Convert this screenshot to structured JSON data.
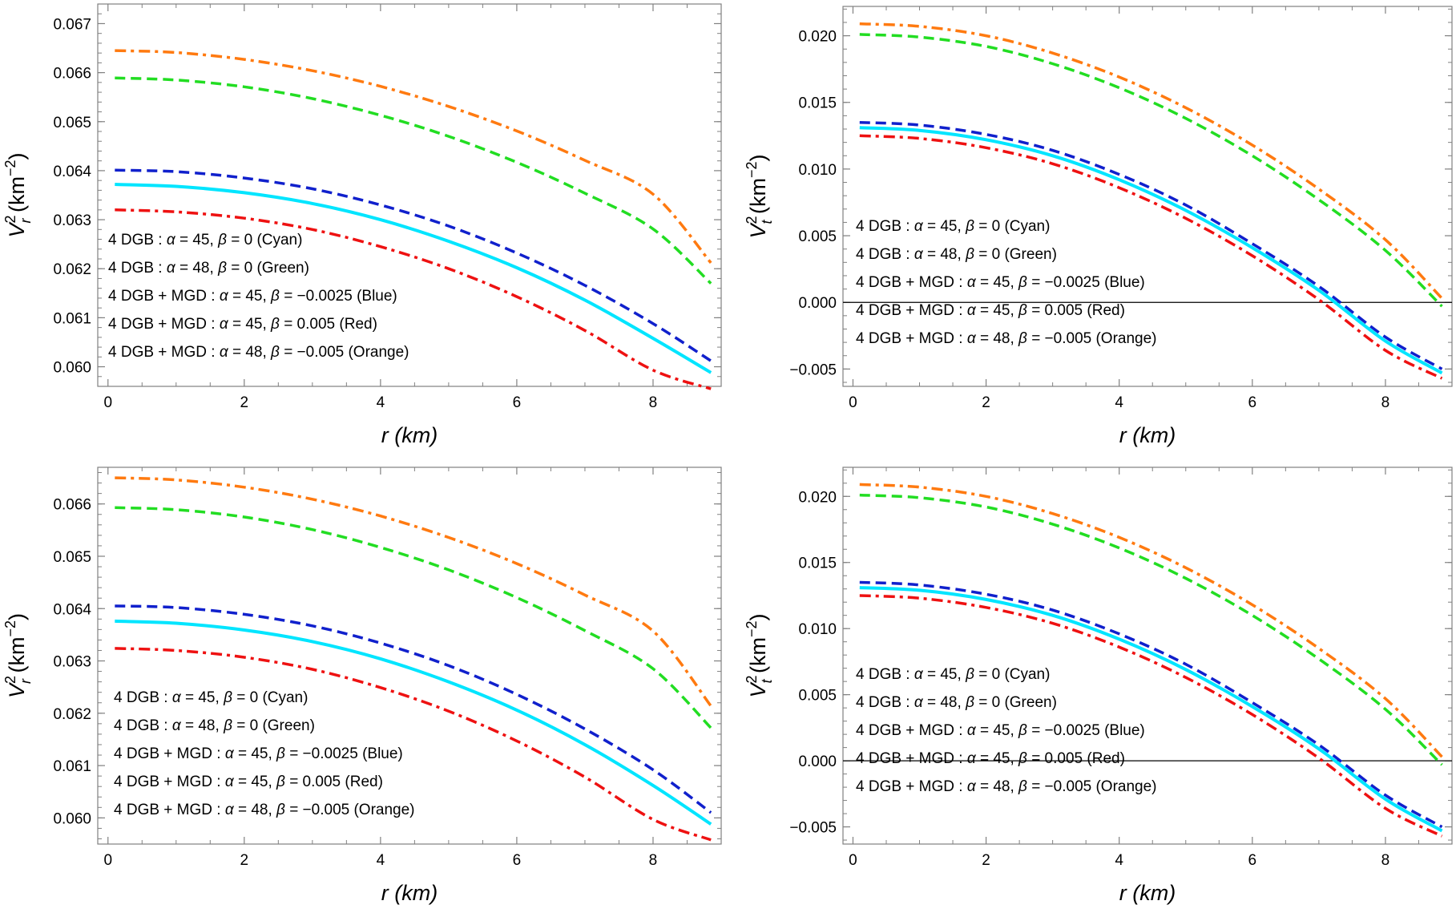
{
  "legend_entries": [
    {
      "prefix": "4 DGB :",
      "alpha": "α = 45,",
      "beta": "β = 0",
      "suffix": "(Cyan)",
      "color": "#00e5ff"
    },
    {
      "prefix": "4 DGB :",
      "alpha": "α = 48,",
      "beta": "β = 0",
      "suffix": "(Green)",
      "color": "#22dd22"
    },
    {
      "prefix": "4 DGB + MGD :",
      "alpha": "α = 45,",
      "beta": "β = −0.0025",
      "suffix": "(Blue)",
      "color": "#1020cc"
    },
    {
      "prefix": "4 DGB + MGD :",
      "alpha": "α = 45,",
      "beta": "β = 0.005",
      "suffix": "(Red)",
      "color": "#ee1111"
    },
    {
      "prefix": "4 DGB + MGD :",
      "alpha": "α = 48,",
      "beta": "β = −0.005",
      "suffix": "(Orange)",
      "color": "#ff7a10"
    }
  ],
  "styles": {
    "Cyan": {
      "color": "#00e5ff",
      "dash": "solid"
    },
    "Green": {
      "color": "#22dd22",
      "dash": "dashed"
    },
    "Blue": {
      "color": "#1020cc",
      "dash": "dashed"
    },
    "Red": {
      "color": "#ee1111",
      "dash": "dashdot"
    },
    "Orange": {
      "color": "#ff7a10",
      "dash": "dashdot"
    }
  },
  "chart_data": [
    {
      "type": "line",
      "id": "top-left",
      "xlabel": "r (km)",
      "ylabel": {
        "base": "V",
        "sub": "r",
        "sup": "2",
        "unit_base": "(km",
        "unit_sup": "−2",
        "unit_close": ")"
      },
      "xlim": [
        -0.15,
        9.0
      ],
      "ylim": [
        0.0596,
        0.0674
      ],
      "xticks": [
        "0",
        "2",
        "4",
        "6",
        "8"
      ],
      "yticks": [
        "0.060",
        "0.061",
        "0.062",
        "0.063",
        "0.064",
        "0.065",
        "0.066",
        "0.067"
      ],
      "zero_line": false,
      "x": [
        0.1,
        1,
        2,
        3,
        4,
        5,
        6,
        7,
        8,
        8.85
      ],
      "series": [
        {
          "name": "Orange",
          "values": [
            0.06645,
            0.06641,
            0.06627,
            0.06604,
            0.06572,
            0.06531,
            0.06481,
            0.06421,
            0.06352,
            0.06212
          ]
        },
        {
          "name": "Green",
          "values": [
            0.06589,
            0.06585,
            0.06571,
            0.06547,
            0.06513,
            0.0647,
            0.06417,
            0.06354,
            0.06281,
            0.0617
          ]
        },
        {
          "name": "Blue",
          "values": [
            0.06401,
            0.06398,
            0.06385,
            0.06363,
            0.0633,
            0.06287,
            0.06232,
            0.06166,
            0.06088,
            0.06012
          ]
        },
        {
          "name": "Cyan",
          "values": [
            0.06372,
            0.06368,
            0.06355,
            0.06333,
            0.063,
            0.06256,
            0.06202,
            0.06136,
            0.06058,
            0.05988
          ]
        },
        {
          "name": "Red",
          "values": [
            0.0632,
            0.06316,
            0.06303,
            0.0628,
            0.06245,
            0.062,
            0.06143,
            0.06074,
            0.05993,
            0.05955
          ]
        }
      ]
    },
    {
      "type": "line",
      "id": "top-right",
      "xlabel": "r (km)",
      "ylabel": {
        "base": "V",
        "sub": "t",
        "sup": "2",
        "unit_base": "(km",
        "unit_sup": "−2",
        "unit_close": ")"
      },
      "xlim": [
        -0.15,
        9.0
      ],
      "ylim": [
        -0.0063,
        0.0222
      ],
      "xticks": [
        "0",
        "2",
        "4",
        "6",
        "8"
      ],
      "yticks": [
        "-0.005",
        "0.000",
        "0.005",
        "0.010",
        "0.015",
        "0.020"
      ],
      "zero_line": true,
      "x": [
        0.1,
        1,
        2,
        3,
        4,
        5,
        6,
        7,
        8,
        8.85
      ],
      "series": [
        {
          "name": "Orange",
          "values": [
            0.0209,
            0.0207,
            0.02,
            0.0187,
            0.0169,
            0.0146,
            0.0118,
            0.0085,
            0.0047,
            0.0003
          ]
        },
        {
          "name": "Green",
          "values": [
            0.0201,
            0.0199,
            0.0192,
            0.0179,
            0.0161,
            0.0138,
            0.011,
            0.0077,
            0.0039,
            -0.0003
          ]
        },
        {
          "name": "Blue",
          "values": [
            0.0135,
            0.0133,
            0.0126,
            0.0114,
            0.0096,
            0.0073,
            0.0044,
            0.0012,
            -0.0026,
            -0.005
          ]
        },
        {
          "name": "Cyan",
          "values": [
            0.0131,
            0.0129,
            0.0122,
            0.011,
            0.0092,
            0.0069,
            0.0041,
            0.0009,
            -0.0029,
            -0.0053
          ]
        },
        {
          "name": "Red",
          "values": [
            0.0125,
            0.0123,
            0.0116,
            0.0104,
            0.0086,
            0.0063,
            0.0035,
            0.0002,
            -0.0036,
            -0.0057
          ]
        }
      ]
    },
    {
      "type": "line",
      "id": "bottom-left",
      "xlabel": "r (km)",
      "ylabel": {
        "base": "V",
        "sub": "r",
        "sup": "2",
        "unit_base": "(km",
        "unit_sup": "−2",
        "unit_close": ")"
      },
      "xlim": [
        -0.15,
        9.0
      ],
      "ylim": [
        0.0595,
        0.0667
      ],
      "xticks": [
        "0",
        "2",
        "4",
        "6",
        "8"
      ],
      "yticks": [
        "0.060",
        "0.061",
        "0.062",
        "0.063",
        "0.064",
        "0.065",
        "0.066"
      ],
      "zero_line": false,
      "x": [
        0.1,
        1,
        2,
        3,
        4,
        5,
        6,
        7,
        8,
        8.85
      ],
      "series": [
        {
          "name": "Orange",
          "values": [
            0.0665,
            0.06646,
            0.06632,
            0.06609,
            0.06577,
            0.06536,
            0.06486,
            0.06426,
            0.06357,
            0.06214
          ]
        },
        {
          "name": "Green",
          "values": [
            0.06593,
            0.06589,
            0.06575,
            0.06551,
            0.06517,
            0.06474,
            0.06421,
            0.06358,
            0.06285,
            0.06172
          ]
        },
        {
          "name": "Blue",
          "values": [
            0.06405,
            0.06402,
            0.06389,
            0.06367,
            0.06334,
            0.06291,
            0.06236,
            0.0617,
            0.06092,
            0.0601
          ]
        },
        {
          "name": "Cyan",
          "values": [
            0.06376,
            0.06372,
            0.06359,
            0.06337,
            0.06304,
            0.0626,
            0.06206,
            0.0614,
            0.06062,
            0.05988
          ]
        },
        {
          "name": "Red",
          "values": [
            0.06324,
            0.0632,
            0.06307,
            0.06284,
            0.06249,
            0.06204,
            0.06147,
            0.06078,
            0.05997,
            0.05958
          ]
        }
      ]
    },
    {
      "type": "line",
      "id": "bottom-right",
      "xlabel": "r (km)",
      "ylabel": {
        "base": "V",
        "sub": "t",
        "sup": "2",
        "unit_base": "(km",
        "unit_sup": "−2",
        "unit_close": ")"
      },
      "xlim": [
        -0.15,
        9.0
      ],
      "ylim": [
        -0.0063,
        0.0222
      ],
      "xticks": [
        "0",
        "2",
        "4",
        "6",
        "8"
      ],
      "yticks": [
        "-0.005",
        "0.000",
        "0.005",
        "0.010",
        "0.015",
        "0.020"
      ],
      "zero_line": true,
      "x": [
        0.1,
        1,
        2,
        3,
        4,
        5,
        6,
        7,
        8,
        8.85
      ],
      "series": [
        {
          "name": "Orange",
          "values": [
            0.0209,
            0.0207,
            0.02,
            0.0187,
            0.0169,
            0.0146,
            0.0118,
            0.0085,
            0.0047,
            0.0003
          ]
        },
        {
          "name": "Green",
          "values": [
            0.0201,
            0.0199,
            0.0192,
            0.0179,
            0.0161,
            0.0138,
            0.011,
            0.0077,
            0.0039,
            -0.0003
          ]
        },
        {
          "name": "Blue",
          "values": [
            0.0135,
            0.0133,
            0.0126,
            0.0114,
            0.0096,
            0.0073,
            0.0044,
            0.0012,
            -0.0026,
            -0.005
          ]
        },
        {
          "name": "Cyan",
          "values": [
            0.0131,
            0.0129,
            0.0122,
            0.011,
            0.0092,
            0.0069,
            0.0041,
            0.0009,
            -0.0029,
            -0.0053
          ]
        },
        {
          "name": "Red",
          "values": [
            0.0125,
            0.0123,
            0.0116,
            0.0104,
            0.0086,
            0.0063,
            0.0035,
            0.0002,
            -0.0036,
            -0.0057
          ]
        }
      ]
    }
  ]
}
